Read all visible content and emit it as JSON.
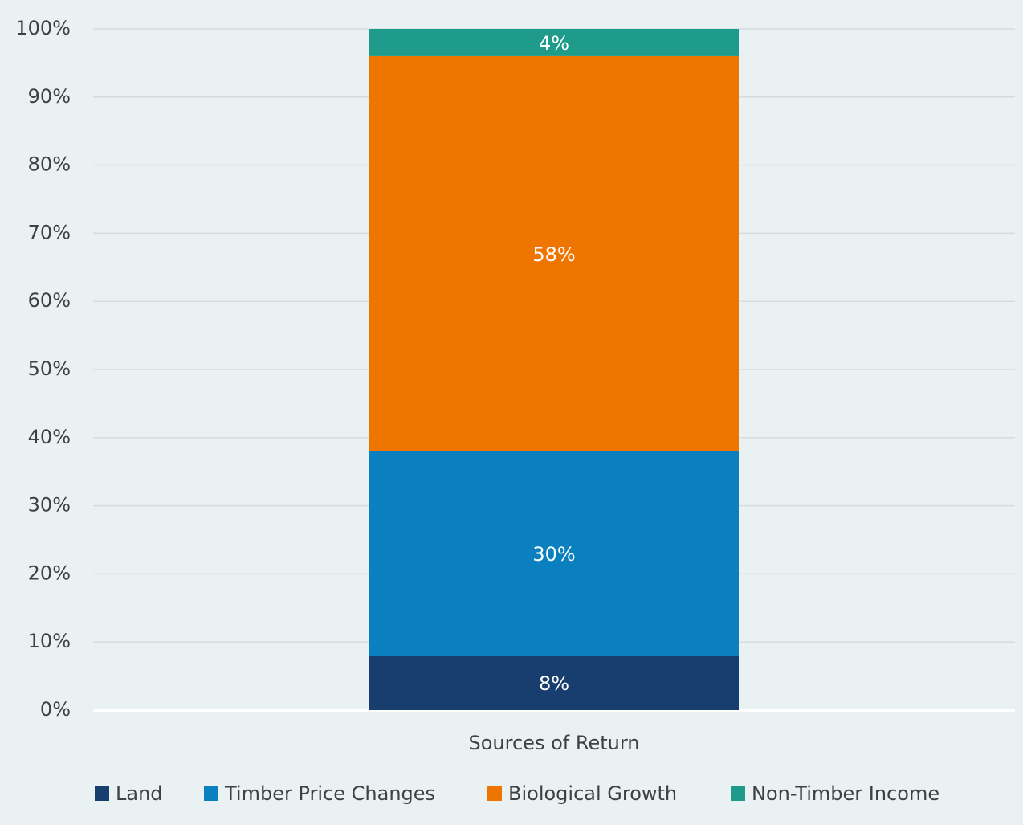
{
  "chart_data": {
    "type": "stacked_bar",
    "categories": [
      "Sources of Return"
    ],
    "series": [
      {
        "name": "Land",
        "color": "#173e6e",
        "values": [
          8
        ],
        "value_labels": [
          "8%"
        ]
      },
      {
        "name": "Timber Price Changes",
        "color": "#0a80c0",
        "values": [
          30
        ],
        "value_labels": [
          "30%"
        ]
      },
      {
        "name": "Biological Growth",
        "color": "#ee7600",
        "values": [
          58
        ],
        "value_labels": [
          "58%"
        ]
      },
      {
        "name": "Non-Timber Income",
        "color": "#1e9b8a",
        "values": [
          4
        ],
        "value_labels": [
          "4%"
        ]
      }
    ],
    "ylim": [
      0,
      100
    ],
    "yticks": [
      {
        "value": 0,
        "label": "0%"
      },
      {
        "value": 10,
        "label": "10%"
      },
      {
        "value": 20,
        "label": "20%"
      },
      {
        "value": 30,
        "label": "30%"
      },
      {
        "value": 40,
        "label": "40%"
      },
      {
        "value": 50,
        "label": "50%"
      },
      {
        "value": 60,
        "label": "60%"
      },
      {
        "value": 70,
        "label": "70%"
      },
      {
        "value": 80,
        "label": "80%"
      },
      {
        "value": 90,
        "label": "90%"
      },
      {
        "value": 100,
        "label": "100%"
      }
    ],
    "grid": true,
    "legend": "bottom"
  }
}
